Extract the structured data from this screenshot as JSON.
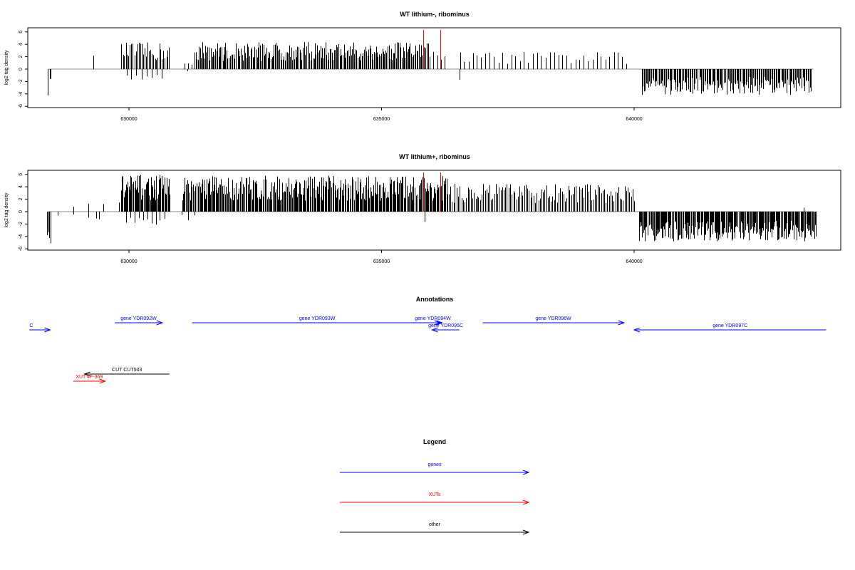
{
  "chart_data": [
    {
      "type": "bar",
      "title": "WT lithium-, ribominus",
      "ylabel": "log2 tag density",
      "xlim": [
        628000,
        643800
      ],
      "ylim": [
        -6,
        6
      ],
      "yticks": [
        6,
        4,
        2,
        0,
        -2,
        -4,
        -6
      ],
      "xticks": [
        630000,
        635000,
        640000
      ],
      "markers": {
        "color": "#ff0000",
        "x": [
          635820,
          636170
        ],
        "y": 6.3
      },
      "segments": [
        {
          "x0": 628400,
          "x1": 628450,
          "y": -4.8,
          "n": 3
        },
        {
          "x0": 629300,
          "x1": 629330,
          "y": 2.6,
          "n": 1
        },
        {
          "x0": 629850,
          "x1": 630800,
          "y": 4.3,
          "n": 34
        },
        {
          "x0": 629950,
          "x1": 630650,
          "y": -1.8,
          "n": 8
        },
        {
          "x0": 631100,
          "x1": 631300,
          "y": 1.8,
          "n": 4
        },
        {
          "x0": 631150,
          "x1": 631250,
          "y": -1.1,
          "n": 1
        },
        {
          "x0": 631300,
          "x1": 635950,
          "y": 4.4,
          "n": 220
        },
        {
          "x0": 635950,
          "x1": 636250,
          "y": 3.0,
          "n": 5
        },
        {
          "x0": 636540,
          "x1": 636560,
          "y": -2.0,
          "n": 1
        },
        {
          "x0": 636550,
          "x1": 639850,
          "y": 2.8,
          "n": 40
        },
        {
          "x0": 640150,
          "x1": 643500,
          "y": -4.2,
          "n": 160
        }
      ]
    },
    {
      "type": "bar",
      "title": "WT lithium+, ribominus",
      "ylabel": "log2 tag density",
      "xlim": [
        628000,
        643800
      ],
      "ylim": [
        -6,
        6
      ],
      "yticks": [
        6,
        4,
        2,
        0,
        -2,
        -4,
        -6
      ],
      "xticks": [
        630000,
        635000,
        640000
      ],
      "markers": {
        "color": "#ff0000",
        "x": [
          635820,
          636170
        ],
        "y": 6.3
      },
      "segments": [
        {
          "x0": 628380,
          "x1": 628450,
          "y": -5.5,
          "n": 4
        },
        {
          "x0": 628600,
          "x1": 629200,
          "y": -1.0,
          "n": 3
        },
        {
          "x0": 628900,
          "x1": 629800,
          "y": 1.8,
          "n": 4
        },
        {
          "x0": 629350,
          "x1": 629400,
          "y": -2.5,
          "n": 2
        },
        {
          "x0": 629850,
          "x1": 630800,
          "y": 6.0,
          "n": 60
        },
        {
          "x0": 629950,
          "x1": 630700,
          "y": -2.2,
          "n": 10
        },
        {
          "x0": 631050,
          "x1": 631300,
          "y": -1.5,
          "n": 3
        },
        {
          "x0": 631050,
          "x1": 636300,
          "y": 5.8,
          "n": 300
        },
        {
          "x0": 635850,
          "x1": 635870,
          "y": -2.0,
          "n": 1
        },
        {
          "x0": 636300,
          "x1": 640000,
          "y": 4.5,
          "n": 120
        },
        {
          "x0": 640100,
          "x1": 643600,
          "y": -4.8,
          "n": 220
        },
        {
          "x0": 643350,
          "x1": 643370,
          "y": 1.4,
          "n": 1
        }
      ]
    }
  ],
  "annotations": {
    "title": "Annotations",
    "xlim": [
      628000,
      643800
    ],
    "features": [
      {
        "label": "C",
        "type": "gene",
        "start": 628030,
        "end": 628440,
        "strand": "+",
        "row": 1,
        "color": "#0000ff",
        "label_pos": "left"
      },
      {
        "label": "gene YDR092W",
        "type": "gene",
        "start": 629720,
        "end": 630660,
        "strand": "+",
        "row": 0,
        "color": "#0000ff",
        "label_pos": "center"
      },
      {
        "label": "gene YDR093W",
        "type": "gene",
        "start": 631250,
        "end": 636200,
        "strand": "+",
        "row": 0,
        "color": "#0000ff",
        "label_pos": "center"
      },
      {
        "label": "gene YDR094W",
        "type": "gene",
        "start": 635870,
        "end": 636160,
        "strand": "+",
        "row": 0,
        "color": "#0000ff",
        "label_pos": "center"
      },
      {
        "label": "gene YDR095C",
        "type": "gene",
        "start": 636000,
        "end": 636540,
        "strand": "-",
        "row": 1,
        "color": "#0000ff",
        "label_pos": "center"
      },
      {
        "label": "gene YDR096W",
        "type": "gene",
        "start": 637000,
        "end": 639800,
        "strand": "+",
        "row": 0,
        "color": "#0000ff",
        "label_pos": "center"
      },
      {
        "label": "gene YDR097C",
        "type": "gene",
        "start": 640000,
        "end": 643800,
        "strand": "-",
        "row": 1,
        "color": "#0000ff",
        "label_pos": "center"
      },
      {
        "label": "CUT CUT503",
        "type": "other",
        "start": 629120,
        "end": 630800,
        "strand": "-",
        "row": 6,
        "color": "#000000",
        "label_pos": "center"
      },
      {
        "label": "XUT 4F-369",
        "type": "XUT",
        "start": 628900,
        "end": 629530,
        "strand": "+",
        "row": 7,
        "color": "#ff0000",
        "label_pos": "center"
      }
    ]
  },
  "legend": {
    "title": "Legend",
    "items": [
      {
        "label": "genes",
        "color": "#0000ff"
      },
      {
        "label": "XUTs",
        "color": "#ff0000"
      },
      {
        "label": "other",
        "color": "#000000"
      }
    ]
  }
}
